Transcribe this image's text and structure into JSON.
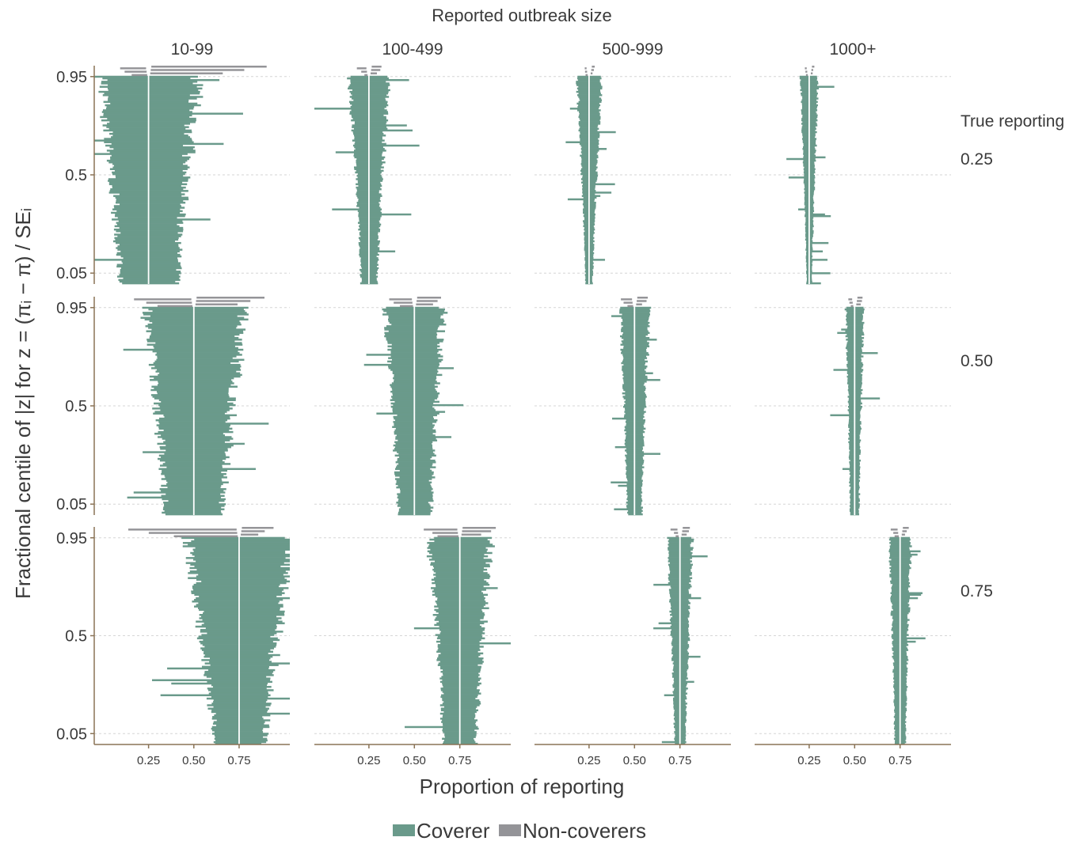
{
  "figure": {
    "top_title": "Reported outbreak size",
    "right_title": "True reporting",
    "xlabel": "Proportion of reporting",
    "ylabel": "Fractional centile of |z| for z = (πᵢ − π) / SEᵢ"
  },
  "legend": {
    "items": [
      {
        "label": "Coverer",
        "color": "#6a9a8b"
      },
      {
        "label": "Non-coverers",
        "color": "#949498"
      }
    ]
  },
  "chart_data": {
    "type": "bar",
    "subtype": "zip-plot (horizontal interval bars ordered by centile)",
    "columns": [
      "10-99",
      "100-499",
      "500-999",
      "1000+"
    ],
    "rows": [
      "0.25",
      "0.50",
      "0.75"
    ],
    "x_axis": {
      "ticks": [
        0.25,
        0.5,
        0.75
      ],
      "tick_labels": [
        "0.25",
        "0.50",
        "0.75"
      ],
      "range": [
        -0.05,
        1.03
      ]
    },
    "y_axis": {
      "ticks": [
        0.05,
        0.5,
        0.95
      ],
      "tick_labels": [
        "0.05",
        "0.5",
        "0.95"
      ],
      "range": [
        0,
        1
      ]
    },
    "coverage_level": 0.95,
    "colors": {
      "coverer": "#6a9a8b",
      "non_coverer": "#949498",
      "true_value_line": "#ffffff"
    },
    "panels": [
      {
        "row": "0.25",
        "col": "10-99",
        "true_value": 0.25,
        "half_width_at_0": 0.16,
        "half_width_at_095": 0.27,
        "noncover_extreme_left": 0.06,
        "noncover_extreme_right": 0.94,
        "outlier_spread": 0.3
      },
      {
        "row": "0.25",
        "col": "100-499",
        "true_value": 0.25,
        "half_width_at_0": 0.045,
        "half_width_at_095": 0.11,
        "noncover_extreme_left": 0.17,
        "noncover_extreme_right": 0.34,
        "outlier_spread": 0.22
      },
      {
        "row": "0.25",
        "col": "500-999",
        "true_value": 0.25,
        "half_width_at_0": 0.02,
        "half_width_at_095": 0.07,
        "noncover_extreme_left": 0.21,
        "noncover_extreme_right": 0.29,
        "outlier_spread": 0.1
      },
      {
        "row": "0.25",
        "col": "1000+",
        "true_value": 0.25,
        "half_width_at_0": 0.015,
        "half_width_at_095": 0.05,
        "noncover_extreme_left": 0.22,
        "noncover_extreme_right": 0.28,
        "outlier_spread": 0.1
      },
      {
        "row": "0.50",
        "col": "10-99",
        "true_value": 0.5,
        "half_width_at_0": 0.16,
        "half_width_at_095": 0.27,
        "noncover_extreme_left": 0.12,
        "noncover_extreme_right": 0.91,
        "outlier_spread": 0.3
      },
      {
        "row": "0.50",
        "col": "100-499",
        "true_value": 0.5,
        "half_width_at_0": 0.09,
        "half_width_at_095": 0.16,
        "noncover_extreme_left": 0.33,
        "noncover_extreme_right": 0.67,
        "outlier_spread": 0.22
      },
      {
        "row": "0.50",
        "col": "500-999",
        "true_value": 0.5,
        "half_width_at_0": 0.04,
        "half_width_at_095": 0.08,
        "noncover_extreme_left": 0.41,
        "noncover_extreme_right": 0.59,
        "outlier_spread": 0.1
      },
      {
        "row": "0.50",
        "col": "1000+",
        "true_value": 0.5,
        "half_width_at_0": 0.025,
        "half_width_at_095": 0.05,
        "noncover_extreme_left": 0.44,
        "noncover_extreme_right": 0.56,
        "outlier_spread": 0.1
      },
      {
        "row": "0.75",
        "col": "10-99",
        "true_value": 0.75,
        "half_width_at_0": 0.14,
        "half_width_at_095": 0.3,
        "noncover_extreme_left": 0.04,
        "noncover_extreme_right": 0.95,
        "outlier_spread": 0.4
      },
      {
        "row": "0.75",
        "col": "100-499",
        "true_value": 0.75,
        "half_width_at_0": 0.09,
        "half_width_at_095": 0.17,
        "noncover_extreme_left": 0.52,
        "noncover_extreme_right": 0.97,
        "outlier_spread": 0.22
      },
      {
        "row": "0.75",
        "col": "500-999",
        "true_value": 0.75,
        "half_width_at_0": 0.03,
        "half_width_at_095": 0.07,
        "noncover_extreme_left": 0.68,
        "noncover_extreme_right": 0.82,
        "outlier_spread": 0.1
      },
      {
        "row": "0.75",
        "col": "1000+",
        "true_value": 0.75,
        "half_width_at_0": 0.03,
        "half_width_at_095": 0.06,
        "noncover_extreme_left": 0.68,
        "noncover_extreme_right": 0.82,
        "outlier_spread": 0.1
      }
    ]
  }
}
